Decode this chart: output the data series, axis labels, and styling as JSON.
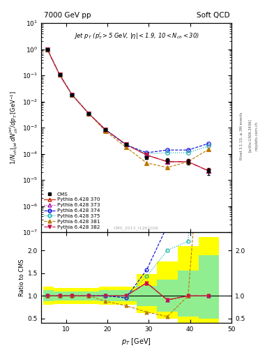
{
  "cms_pt": [
    5.5,
    8.5,
    11.5,
    15.5,
    19.5,
    24.5,
    29.5,
    34.5,
    39.5,
    44.5
  ],
  "cms_val": [
    1.0,
    0.105,
    0.018,
    0.0035,
    0.00085,
    0.00023,
    7e-05,
    5.5e-05,
    5e-05,
    2.2e-05
  ],
  "cms_err": [
    0.04,
    0.004,
    0.0008,
    0.00015,
    4e-05,
    1.2e-05,
    8e-06,
    1.2e-05,
    1.2e-05,
    7e-06
  ],
  "py370_pt": [
    5.5,
    8.5,
    11.5,
    15.5,
    19.5,
    24.5,
    29.5,
    34.5,
    39.5,
    44.5
  ],
  "py370_val": [
    1.0,
    0.105,
    0.018,
    0.0035,
    0.00085,
    0.00023,
    9e-05,
    5e-05,
    5e-05,
    2.2e-05
  ],
  "py373_pt": [
    5.5,
    8.5,
    11.5,
    15.5,
    19.5,
    24.5,
    29.5,
    34.5,
    39.5,
    44.5
  ],
  "py373_val": [
    1.0,
    0.105,
    0.018,
    0.0035,
    0.00085,
    0.00023,
    9e-05,
    5e-05,
    5e-05,
    2.2e-05
  ],
  "py374_pt": [
    5.5,
    8.5,
    11.5,
    15.5,
    19.5,
    24.5,
    29.5,
    34.5,
    39.5,
    44.5
  ],
  "py374_val": [
    1.0,
    0.105,
    0.018,
    0.0035,
    0.00085,
    0.00022,
    0.00011,
    0.00014,
    0.00014,
    0.00025
  ],
  "py375_pt": [
    5.5,
    8.5,
    11.5,
    15.5,
    19.5,
    24.5,
    29.5,
    34.5,
    39.5,
    44.5
  ],
  "py375_val": [
    1.0,
    0.105,
    0.018,
    0.0035,
    0.00085,
    0.00023,
    0.0001,
    0.00011,
    0.00011,
    0.0002
  ],
  "py381_pt": [
    5.5,
    8.5,
    11.5,
    15.5,
    19.5,
    24.5,
    29.5,
    34.5,
    39.5,
    44.5
  ],
  "py381_val": [
    1.0,
    0.105,
    0.018,
    0.0035,
    0.00075,
    0.00018,
    4.5e-05,
    3e-05,
    5e-05,
    0.00015
  ],
  "py382_pt": [
    5.5,
    8.5,
    11.5,
    15.5,
    19.5,
    24.5,
    29.5,
    34.5,
    39.5,
    44.5
  ],
  "py382_val": [
    1.0,
    0.105,
    0.018,
    0.0035,
    0.00085,
    0.00023,
    9e-05,
    5e-05,
    5e-05,
    2.2e-05
  ],
  "color_cms": "#000000",
  "color_370": "#cc2200",
  "color_373": "#aa00aa",
  "color_374": "#0000dd",
  "color_375": "#00aaaa",
  "color_381": "#bb7700",
  "color_382": "#cc1144",
  "bin_edges": [
    4.5,
    7.0,
    10.0,
    13.0,
    18.0,
    22.0,
    27.0,
    32.0,
    37.0,
    42.0,
    47.0
  ],
  "green_lo": [
    0.88,
    0.9,
    0.9,
    0.9,
    0.88,
    0.88,
    0.78,
    0.65,
    0.55,
    0.5
  ],
  "green_hi": [
    1.12,
    1.1,
    1.1,
    1.1,
    1.12,
    1.12,
    1.22,
    1.35,
    1.55,
    1.9
  ],
  "yellow_lo": [
    0.8,
    0.82,
    0.82,
    0.82,
    0.8,
    0.8,
    0.62,
    0.5,
    0.4,
    0.35
  ],
  "yellow_hi": [
    1.2,
    1.18,
    1.18,
    1.18,
    1.2,
    1.2,
    1.48,
    1.75,
    2.1,
    2.3
  ],
  "xlim": [
    4,
    50
  ],
  "ylim_main": [
    1e-07,
    10
  ],
  "ylim_ratio": [
    0.4,
    2.4
  ],
  "yticks_ratio": [
    0.5,
    1.0,
    1.5,
    2.0
  ]
}
